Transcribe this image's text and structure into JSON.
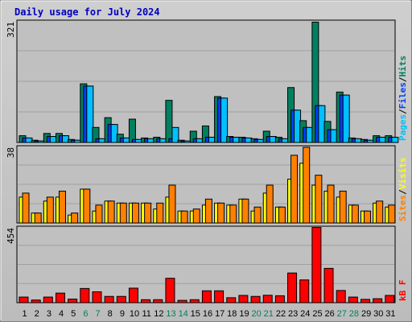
{
  "chart_data": {
    "type": "bar",
    "title": "Daily usage for July 2024",
    "categories": [
      "1",
      "2",
      "3",
      "4",
      "5",
      "6",
      "7",
      "8",
      "9",
      "10",
      "11",
      "12",
      "13",
      "14",
      "15",
      "16",
      "17",
      "18",
      "19",
      "20",
      "21",
      "22",
      "23",
      "24",
      "25",
      "26",
      "27",
      "28",
      "29",
      "30",
      "31"
    ],
    "weekend_days": [
      "6",
      "7",
      "13",
      "14",
      "20",
      "21",
      "27",
      "28"
    ],
    "grid": true,
    "panels": [
      {
        "name": "hits-files-pages",
        "ymax": 321,
        "side_labels": [
          "Pages",
          "Files",
          "Hits"
        ],
        "series": [
          {
            "name": "Hits",
            "color": "#008060",
            "values": [
              18,
              6,
              24,
              24,
              8,
              156,
              40,
              66,
              22,
              62,
              12,
              14,
              112,
              6,
              30,
              44,
              122,
              16,
              14,
              10,
              30,
              14,
              146,
              58,
              320,
              56,
              134,
              12,
              8,
              18,
              18
            ]
          },
          {
            "name": "Files",
            "color": "#0040ff",
            "values": [
              12,
              4,
              16,
              18,
              6,
              150,
              10,
              48,
              12,
              8,
              10,
              10,
              10,
              4,
              10,
              14,
              118,
              14,
              12,
              8,
              16,
              10,
              86,
              40,
              98,
              34,
              126,
              10,
              6,
              14,
              14
            ]
          },
          {
            "name": "Pages",
            "color": "#00c0ff",
            "values": [
              12,
              4,
              16,
              18,
              6,
              150,
              10,
              48,
              12,
              8,
              10,
              10,
              40,
              4,
              10,
              14,
              118,
              14,
              12,
              8,
              16,
              10,
              86,
              40,
              98,
              34,
              126,
              10,
              6,
              14,
              14
            ]
          }
        ]
      },
      {
        "name": "sites-visits",
        "ymax": 38,
        "side_labels": [
          "Sites",
          "Visits"
        ],
        "series": [
          {
            "name": "Visits",
            "color": "#ffff00",
            "values": [
              13,
              5,
              11,
              13,
              4,
              17,
              6,
              11,
              10,
              10,
              10,
              7,
              13,
              6,
              6,
              9,
              10,
              9,
              12,
              6,
              15,
              8,
              22,
              30,
              19,
              16,
              13,
              9,
              6,
              10,
              8
            ]
          },
          {
            "name": "Sites",
            "color": "#ff8000",
            "values": [
              15,
              5,
              13,
              16,
              5,
              17,
              9,
              11,
              10,
              10,
              10,
              10,
              19,
              6,
              7,
              12,
              10,
              9,
              12,
              8,
              19,
              8,
              34,
              38,
              24,
              19,
              16,
              9,
              6,
              11,
              9
            ]
          }
        ]
      },
      {
        "name": "kbytes",
        "ymax": 454,
        "side_labels": [
          "kB F"
        ],
        "series": [
          {
            "name": "kB F",
            "color": "#ff0000",
            "values": [
              34,
              16,
              34,
              58,
              22,
              86,
              66,
              38,
              38,
              88,
              18,
              18,
              148,
              14,
              18,
              72,
              72,
              30,
              44,
              38,
              45,
              42,
              180,
              138,
              456,
              208,
              74,
              34,
              20,
              24,
              44
            ]
          }
        ]
      }
    ]
  }
}
